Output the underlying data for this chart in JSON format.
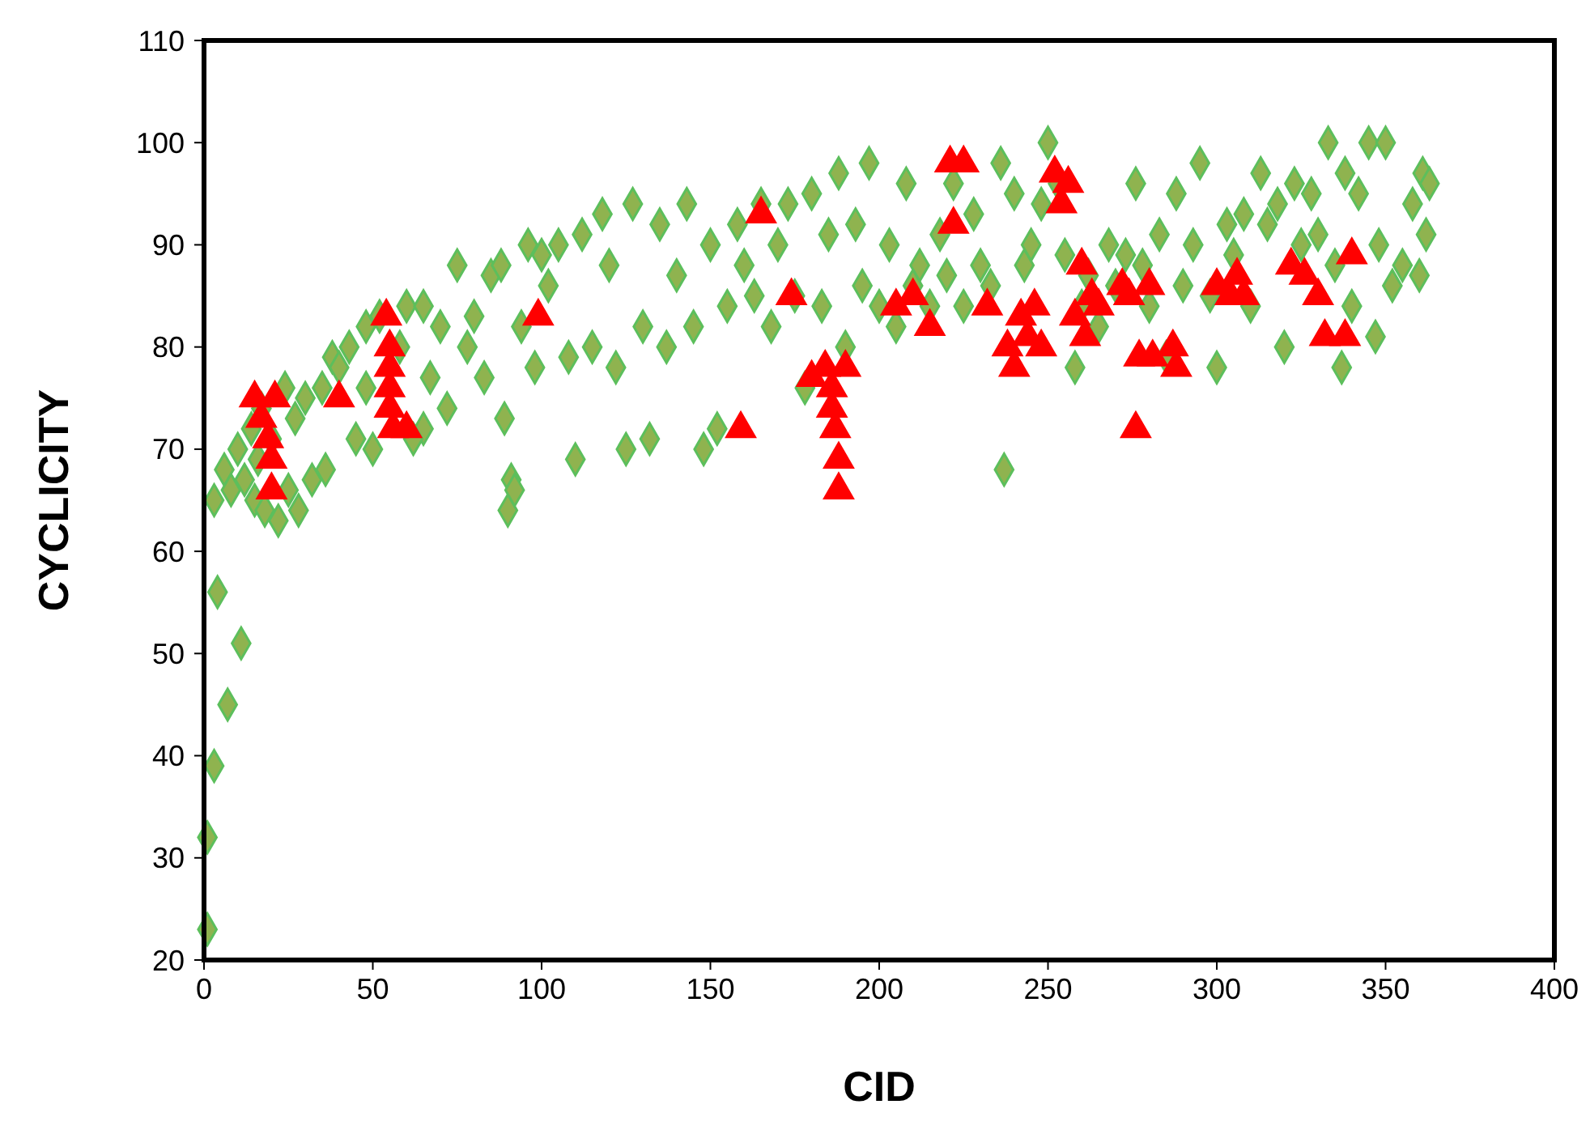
{
  "chart_data": {
    "type": "scatter",
    "xlabel": "CID",
    "ylabel": "CYCLICITY",
    "xlim": [
      0,
      400
    ],
    "ylim": [
      20,
      110
    ],
    "xticks": [
      0,
      50,
      100,
      150,
      200,
      250,
      300,
      350,
      400
    ],
    "yticks": [
      20,
      30,
      40,
      50,
      60,
      70,
      80,
      90,
      100,
      110
    ],
    "grid": false,
    "series": [
      {
        "color": "#8fb34f",
        "marker": "diamond",
        "x": [
          1,
          1,
          3,
          4,
          7,
          11,
          3,
          6,
          8,
          10,
          12,
          14,
          15,
          16,
          17,
          18,
          20,
          22,
          24,
          25,
          27,
          28,
          30,
          32,
          35,
          36,
          38,
          40,
          43,
          45,
          48,
          50,
          52,
          48,
          65,
          58,
          60,
          62,
          65,
          67,
          70,
          72,
          75,
          78,
          80,
          83,
          85,
          88,
          89,
          90,
          91,
          92,
          94,
          96,
          98,
          100,
          102,
          105,
          108,
          110,
          112,
          115,
          118,
          120,
          122,
          125,
          127,
          130,
          132,
          135,
          137,
          140,
          143,
          145,
          148,
          150,
          152,
          155,
          158,
          160,
          163,
          165,
          168,
          170,
          173,
          175,
          178,
          180,
          183,
          185,
          188,
          190,
          193,
          195,
          197,
          200,
          203,
          205,
          208,
          210,
          212,
          215,
          218,
          220,
          222,
          225,
          228,
          230,
          233,
          236,
          237,
          240,
          243,
          245,
          248,
          250,
          253,
          255,
          258,
          260,
          262,
          265,
          268,
          270,
          273,
          276,
          278,
          280,
          283,
          285,
          288,
          290,
          293,
          295,
          298,
          300,
          303,
          305,
          308,
          310,
          313,
          315,
          318,
          320,
          323,
          325,
          328,
          330,
          333,
          335,
          337,
          338,
          340,
          342,
          345,
          347,
          348,
          350,
          352,
          355,
          358,
          360,
          361,
          362,
          363
        ],
        "values": [
          23,
          32,
          39,
          56,
          45,
          51,
          65,
          68,
          66,
          70,
          67,
          72,
          65,
          69,
          74,
          64,
          71,
          63,
          76,
          66,
          73,
          64,
          75,
          67,
          76,
          68,
          79,
          78,
          80,
          71,
          82,
          70,
          83,
          76,
          72,
          80,
          84,
          71,
          84,
          77,
          82,
          74,
          88,
          80,
          83,
          77,
          87,
          88,
          73,
          64,
          67,
          66,
          82,
          90,
          78,
          89,
          86,
          90,
          79,
          69,
          91,
          80,
          93,
          88,
          78,
          70,
          94,
          82,
          71,
          92,
          80,
          87,
          94,
          82,
          70,
          90,
          72,
          84,
          92,
          88,
          85,
          94,
          82,
          90,
          94,
          85,
          76,
          95,
          84,
          91,
          97,
          80,
          92,
          86,
          98,
          84,
          90,
          82,
          96,
          86,
          88,
          84,
          91,
          87,
          96,
          84,
          93,
          88,
          86,
          98,
          68,
          95,
          88,
          90,
          94,
          100,
          96,
          89,
          78,
          84,
          87,
          82,
          90,
          86,
          89,
          96,
          88,
          84,
          91,
          79,
          95,
          86,
          90,
          98,
          85,
          78,
          92,
          89,
          93,
          84,
          97,
          92,
          94,
          80,
          96,
          90,
          95,
          91,
          100,
          88,
          78,
          97,
          84,
          95,
          100,
          81,
          90,
          100,
          86,
          88,
          94,
          87,
          97,
          91,
          96
        ]
      },
      {
        "color": "#ff0000",
        "marker": "triangle",
        "x": [
          15,
          17,
          19,
          20,
          20,
          21,
          40,
          54,
          55,
          55,
          55,
          55,
          56,
          60,
          99,
          159,
          165,
          174,
          180,
          184,
          186,
          186,
          187,
          188,
          188,
          190,
          205,
          210,
          215,
          221,
          222,
          225,
          232,
          238,
          240,
          242,
          244,
          246,
          248,
          252,
          254,
          256,
          258,
          260,
          261,
          263,
          265,
          272,
          274,
          276,
          277,
          280,
          281,
          287,
          288,
          300,
          304,
          306,
          308,
          322,
          326,
          330,
          332,
          338,
          340
        ],
        "values": [
          75,
          73,
          71,
          69,
          66,
          75,
          75,
          83,
          80,
          78,
          76,
          74,
          72,
          72,
          83,
          72,
          93,
          85,
          77,
          78,
          76,
          74,
          72,
          69,
          66,
          78,
          84,
          85,
          82,
          98,
          92,
          98,
          84,
          80,
          78,
          83,
          81,
          84,
          80,
          97,
          94,
          96,
          83,
          88,
          81,
          85,
          84,
          86,
          85,
          72,
          79,
          86,
          79,
          80,
          78,
          86,
          85,
          87,
          85,
          88,
          87,
          85,
          81,
          81,
          89
        ]
      }
    ]
  }
}
